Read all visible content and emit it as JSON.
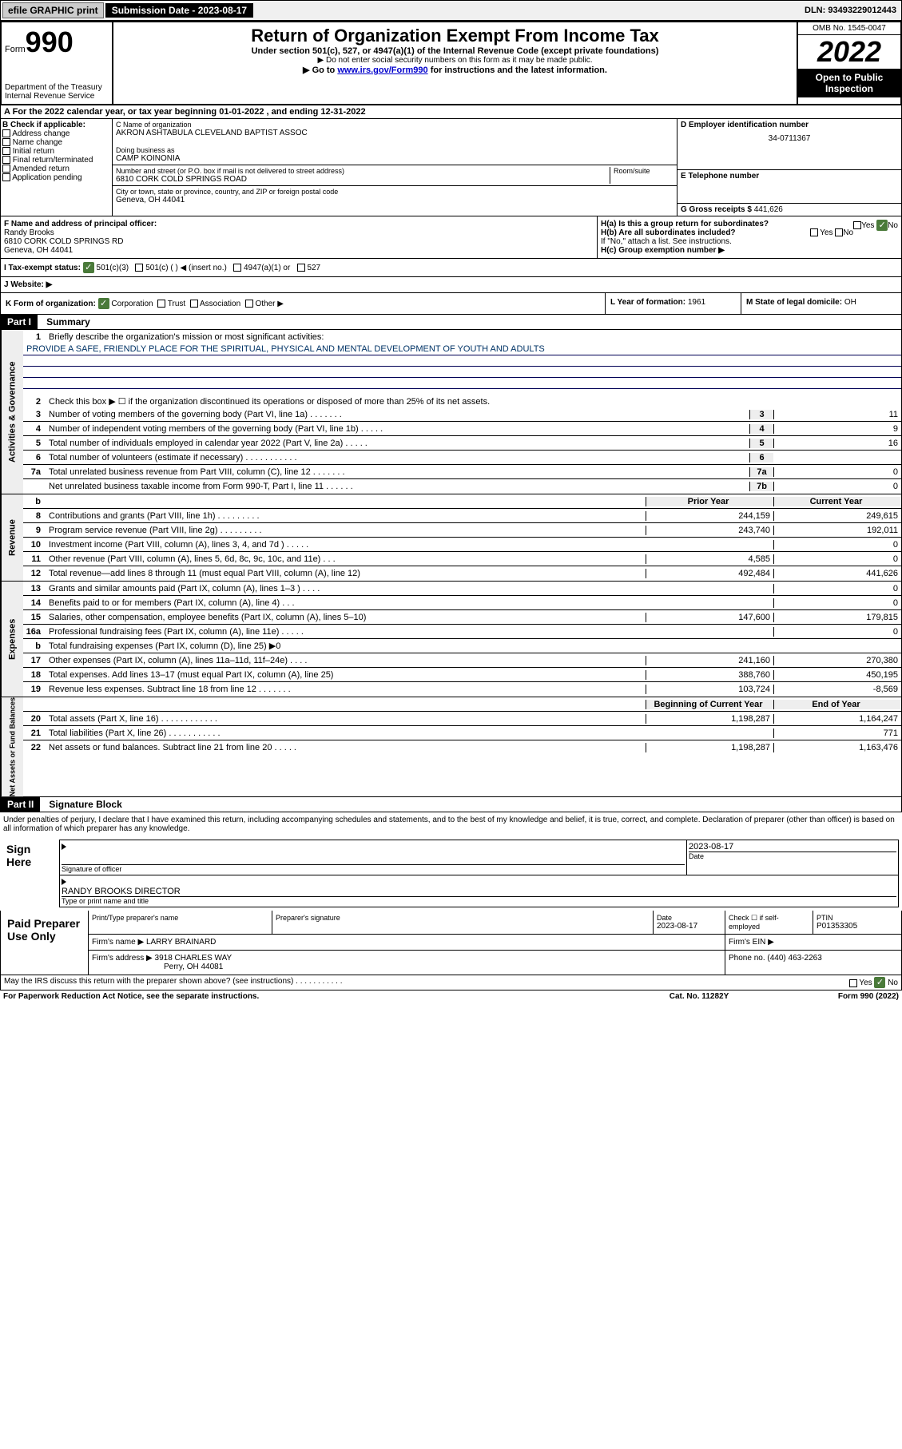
{
  "header": {
    "efile_btn": "efile GRAPHIC print",
    "submission_label": "Submission Date -",
    "submission_date": "2023-08-17",
    "dln_label": "DLN:",
    "dln": "93493229012443"
  },
  "form_header": {
    "form_word": "Form",
    "form_no": "990",
    "title": "Return of Organization Exempt From Income Tax",
    "subtitle": "Under section 501(c), 527, or 4947(a)(1) of the Internal Revenue Code (except private foundations)",
    "note1": "▶ Do not enter social security numbers on this form as it may be made public.",
    "note2_pre": "▶ Go to ",
    "note2_link": "www.irs.gov/Form990",
    "note2_post": " for instructions and the latest information.",
    "dept": "Department of the Treasury",
    "irs": "Internal Revenue Service",
    "omb": "OMB No. 1545-0047",
    "year": "2022",
    "open_pub1": "Open to Public",
    "open_pub2": "Inspection"
  },
  "line_a": "For the 2022 calendar year, or tax year beginning 01-01-2022   , and ending 12-31-2022",
  "block_b": {
    "label": "B Check if applicable:",
    "opts": [
      "Address change",
      "Name change",
      "Initial return",
      "Final return/terminated",
      "Amended return",
      "Application pending"
    ]
  },
  "block_c": {
    "name_label": "C Name of organization",
    "name": "AKRON ASHTABULA CLEVELAND BAPTIST ASSOC",
    "dba_label": "Doing business as",
    "dba": "CAMP KOINONIA",
    "street_label": "Number and street (or P.O. box if mail is not delivered to street address)",
    "room_label": "Room/suite",
    "street": "6810 CORK COLD SPRINGS ROAD",
    "city_label": "City or town, state or province, country, and ZIP or foreign postal code",
    "city": "Geneva, OH  44041"
  },
  "block_d": {
    "label": "D Employer identification number",
    "ein": "34-0711367",
    "e_label": "E Telephone number",
    "g_label": "G Gross receipts $",
    "g_val": "441,626"
  },
  "block_f": {
    "label": "F Name and address of principal officer:",
    "name": "Randy Brooks",
    "addr1": "6810 CORK COLD SPRINGS RD",
    "addr2": "Geneva, OH  44041"
  },
  "block_h": {
    "a_label": "H(a)  Is this a group return for subordinates?",
    "b_label": "H(b)  Are all subordinates included?",
    "b_note": "If \"No,\" attach a list. See instructions.",
    "c_label": "H(c)  Group exemption number ▶",
    "yes": "Yes",
    "no": "No"
  },
  "line_i": {
    "label": "I    Tax-exempt status:",
    "opts": [
      "501(c)(3)",
      "501(c) (  ) ◀ (insert no.)",
      "4947(a)(1) or",
      "527"
    ]
  },
  "line_j": "J   Website: ▶",
  "line_k": "K Form of organization:",
  "k_opts": [
    "Corporation",
    "Trust",
    "Association",
    "Other ▶"
  ],
  "line_l": {
    "label": "L Year of formation:",
    "val": "1961"
  },
  "line_m": {
    "label": "M State of legal domicile:",
    "val": "OH"
  },
  "part1": {
    "hdr": "Part I",
    "title": "Summary",
    "q1": "Briefly describe the organization's mission or most significant activities:",
    "mission": "PROVIDE A SAFE, FRIENDLY PLACE FOR THE SPIRITUAL, PHYSICAL AND MENTAL DEVELOPMENT OF YOUTH AND ADULTS",
    "q2": "Check this box ▶ ☐ if the organization discontinued its operations or disposed of more than 25% of its net assets.",
    "side_gov": "Activities & Governance",
    "side_rev": "Revenue",
    "side_exp": "Expenses",
    "side_net": "Net Assets or Fund Balances",
    "prior_hdr": "Prior Year",
    "curr_hdr": "Current Year",
    "begin_hdr": "Beginning of Current Year",
    "end_hdr": "End of Year",
    "lines_gov": [
      {
        "n": "3",
        "t": "Number of voting members of the governing body (Part VI, line 1a)   .   .   .   .   .   .   .",
        "box": "3",
        "v": "11"
      },
      {
        "n": "4",
        "t": "Number of independent voting members of the governing body (Part VI, line 1b)  .   .   .   .   .",
        "box": "4",
        "v": "9"
      },
      {
        "n": "5",
        "t": "Total number of individuals employed in calendar year 2022 (Part V, line 2a)   .   .   .   .   .",
        "box": "5",
        "v": "16"
      },
      {
        "n": "6",
        "t": "Total number of volunteers (estimate if necessary)   .   .   .   .   .   .   .   .   .   .   .",
        "box": "6",
        "v": ""
      },
      {
        "n": "7a",
        "t": "Total unrelated business revenue from Part VIII, column (C), line 12   .   .   .   .   .   .   .",
        "box": "7a",
        "v": "0"
      },
      {
        "n": "",
        "t": "Net unrelated business taxable income from Form 990-T, Part I, line 11   .   .   .   .   .   .",
        "box": "7b",
        "v": "0"
      }
    ],
    "lines_rev": [
      {
        "n": "8",
        "t": "Contributions and grants (Part VIII, line 1h)   .   .   .   .   .   .   .   .   .",
        "p": "244,159",
        "c": "249,615"
      },
      {
        "n": "9",
        "t": "Program service revenue (Part VIII, line 2g)   .   .   .   .   .   .   .   .   .",
        "p": "243,740",
        "c": "192,011"
      },
      {
        "n": "10",
        "t": "Investment income (Part VIII, column (A), lines 3, 4, and 7d )   .   .   .   .   .",
        "p": "",
        "c": "0"
      },
      {
        "n": "11",
        "t": "Other revenue (Part VIII, column (A), lines 5, 6d, 8c, 9c, 10c, and 11e)   .   .   .",
        "p": "4,585",
        "c": "0"
      },
      {
        "n": "12",
        "t": "Total revenue—add lines 8 through 11 (must equal Part VIII, column (A), line 12)",
        "p": "492,484",
        "c": "441,626"
      }
    ],
    "lines_exp": [
      {
        "n": "13",
        "t": "Grants and similar amounts paid (Part IX, column (A), lines 1–3 )   .   .   .   .",
        "p": "",
        "c": "0"
      },
      {
        "n": "14",
        "t": "Benefits paid to or for members (Part IX, column (A), line 4)   .   .   .",
        "p": "",
        "c": "0"
      },
      {
        "n": "15",
        "t": "Salaries, other compensation, employee benefits (Part IX, column (A), lines 5–10)",
        "p": "147,600",
        "c": "179,815"
      },
      {
        "n": "16a",
        "t": "Professional fundraising fees (Part IX, column (A), line 11e)   .   .   .   .   .",
        "p": "",
        "c": "0"
      },
      {
        "n": "b",
        "t": "Total fundraising expenses (Part IX, column (D), line 25) ▶0",
        "p": "—",
        "c": "—"
      },
      {
        "n": "17",
        "t": "Other expenses (Part IX, column (A), lines 11a–11d, 11f–24e)   .   .   .   .",
        "p": "241,160",
        "c": "270,380"
      },
      {
        "n": "18",
        "t": "Total expenses. Add lines 13–17 (must equal Part IX, column (A), line 25)",
        "p": "388,760",
        "c": "450,195"
      },
      {
        "n": "19",
        "t": "Revenue less expenses. Subtract line 18 from line 12   .   .   .   .   .   .   .",
        "p": "103,724",
        "c": "-8,569"
      }
    ],
    "lines_net": [
      {
        "n": "20",
        "t": "Total assets (Part X, line 16)   .   .   .   .   .   .   .   .   .   .   .   .",
        "p": "1,198,287",
        "c": "1,164,247"
      },
      {
        "n": "21",
        "t": "Total liabilities (Part X, line 26)   .   .   .   .   .   .   .   .   .   .   .",
        "p": "",
        "c": "771"
      },
      {
        "n": "22",
        "t": "Net assets or fund balances. Subtract line 21 from line 20   .   .   .   .   .",
        "p": "1,198,287",
        "c": "1,163,476"
      }
    ]
  },
  "part2": {
    "hdr": "Part II",
    "title": "Signature Block",
    "decl": "Under penalties of perjury, I declare that I have examined this return, including accompanying schedules and statements, and to the best of my knowledge and belief, it is true, correct, and complete. Declaration of preparer (other than officer) is based on all information of which preparer has any knowledge.",
    "sign_here": "Sign Here",
    "sig_officer": "Signature of officer",
    "date_lbl": "Date",
    "sig_date": "2023-08-17",
    "officer_name": "RANDY BROOKS  DIRECTOR",
    "type_name": "Type or print name and title",
    "paid_prep": "Paid Preparer Use Only",
    "print_name_lbl": "Print/Type preparer's name",
    "prep_sig_lbl": "Preparer's signature",
    "prep_date_lbl": "Date",
    "prep_date": "2023-08-17",
    "check_self": "Check ☐ if self-employed",
    "ptin_lbl": "PTIN",
    "ptin": "P01353305",
    "firm_name_lbl": "Firm's name   ▶",
    "firm_name": "LARRY BRAINARD",
    "firm_ein_lbl": "Firm's EIN ▶",
    "firm_addr_lbl": "Firm's address ▶",
    "firm_addr1": "3918 CHARLES WAY",
    "firm_addr2": "Perry, OH  44081",
    "phone_lbl": "Phone no.",
    "phone": "(440) 463-2263",
    "discuss": "May the IRS discuss this return with the preparer shown above? (see instructions)   .   .   .   .   .   .   .   .   .   .   .",
    "paperwork": "For Paperwork Reduction Act Notice, see the separate instructions.",
    "cat": "Cat. No. 11282Y",
    "form_foot": "Form 990 (2022)"
  }
}
